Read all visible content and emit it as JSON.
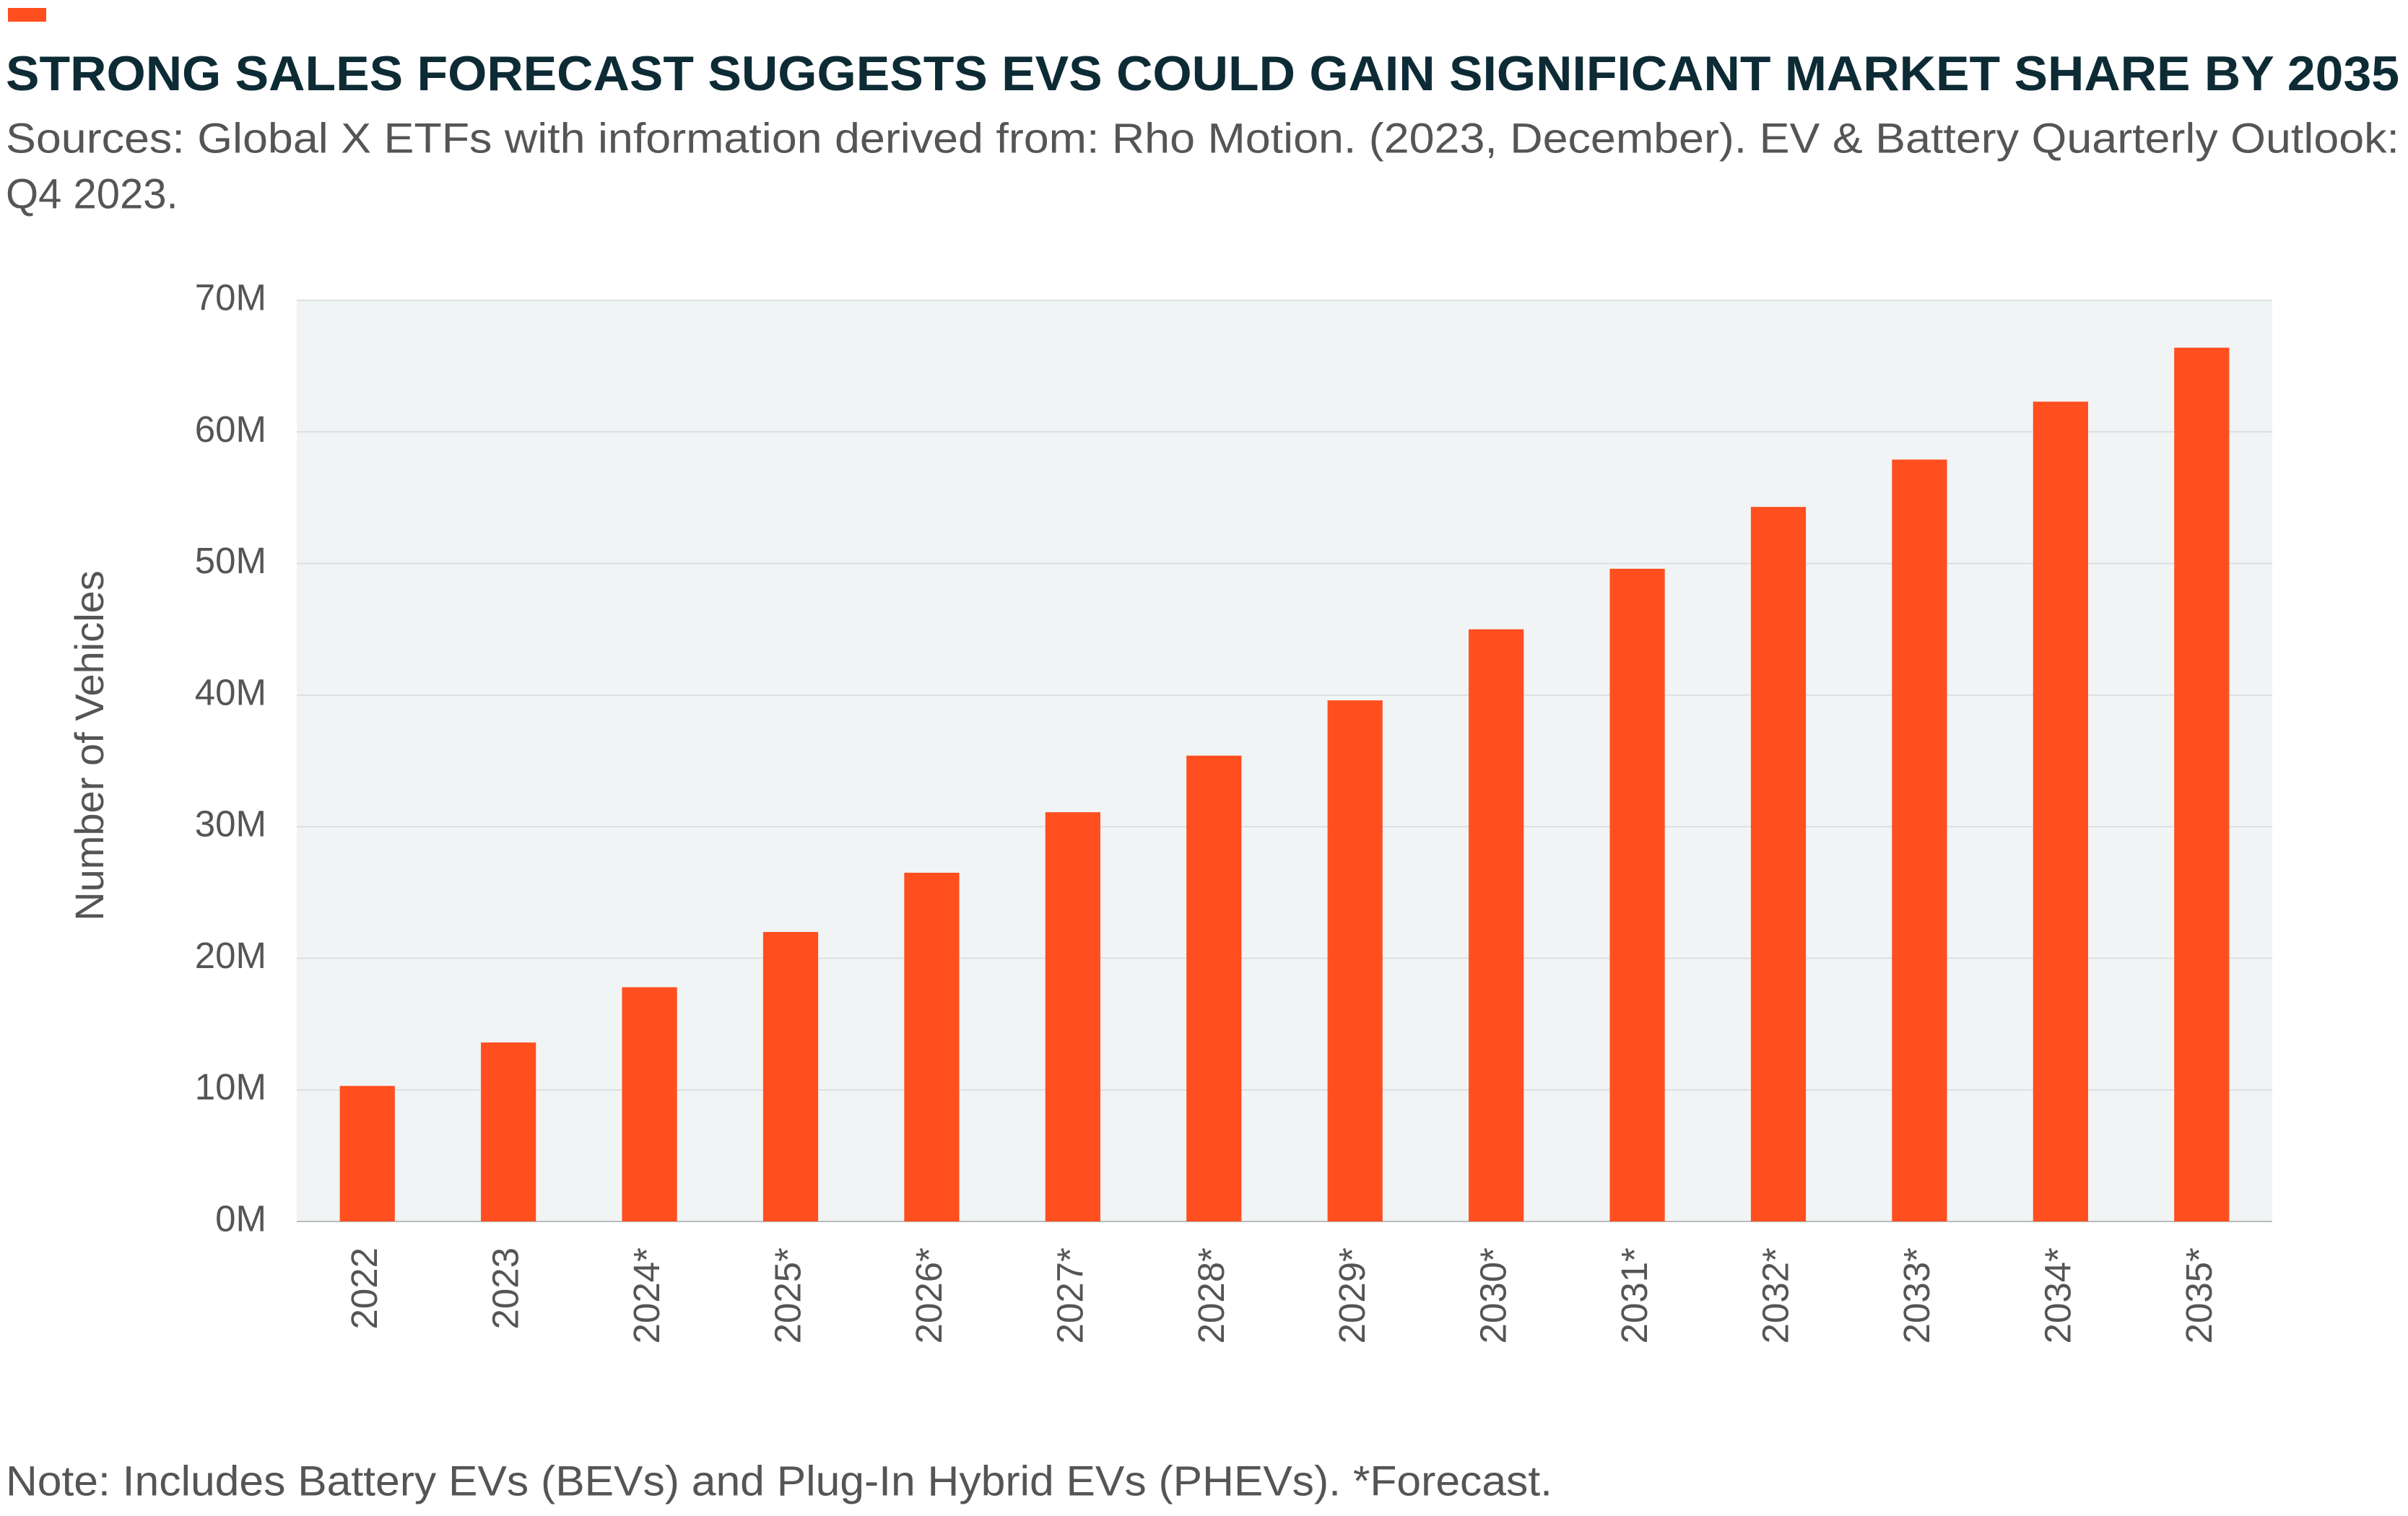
{
  "chart_data": {
    "type": "bar",
    "title": "STRONG SALES FORECAST SUGGESTS EVS COULD GAIN SIGNIFICANT MARKET SHARE BY 2035",
    "subtitle": [
      "Sources: Global X ETFs with information derived from: Rho Motion. (2023, December). EV & Battery Quarterly Outlook:",
      "Q4 2023."
    ],
    "y_label": "Number of Vehicles",
    "note": "Note: Includes Battery EVs (BEVs) and Plug-In Hybrid EVs (PHEVs). *Forecast.",
    "categories": [
      "2022",
      "2023",
      "2024*",
      "2025*",
      "2026*",
      "2027*",
      "2028*",
      "2029*",
      "2030*",
      "2031*",
      "2032*",
      "2033*",
      "2034*",
      "2035*"
    ],
    "values": [
      10.3,
      13.6,
      17.8,
      22.0,
      26.5,
      31.1,
      35.4,
      39.6,
      45.0,
      49.6,
      54.3,
      57.9,
      62.3,
      66.4
    ],
    "color": "#ff4f1f",
    "ylim": [
      0,
      70
    ],
    "yticks": [
      {
        "value": 0,
        "label": "0M"
      },
      {
        "value": 10,
        "label": "10M"
      },
      {
        "value": 20,
        "label": "20M"
      },
      {
        "value": 30,
        "label": "30M"
      },
      {
        "value": 40,
        "label": "40M"
      },
      {
        "value": 50,
        "label": "50M"
      },
      {
        "value": 60,
        "label": "60M"
      },
      {
        "value": 70,
        "label": "70M"
      }
    ],
    "grid": true
  }
}
